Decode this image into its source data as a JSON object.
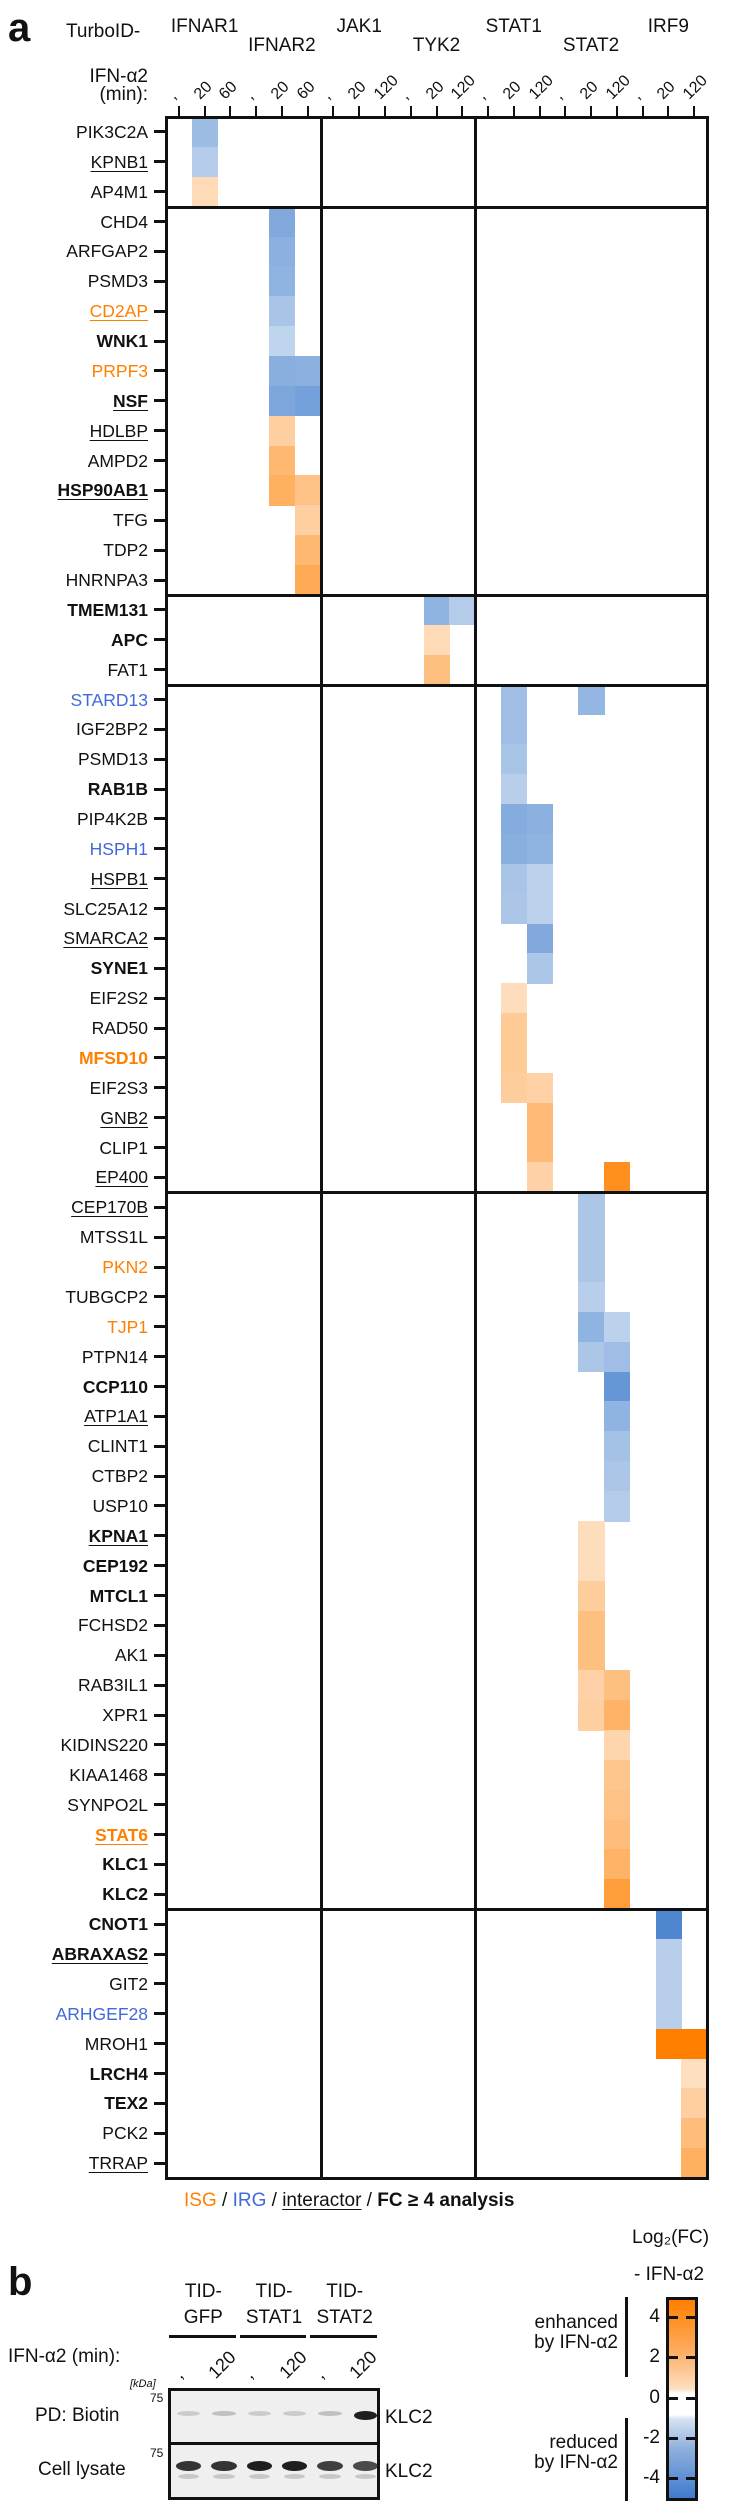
{
  "panel_a": {
    "letter": "a",
    "turboid_label": "TurboID-",
    "ifn_label_line1": "IFN-α2",
    "ifn_label_line2": "(min):",
    "baits": [
      "IFNAR1",
      "IFNAR2",
      "JAK1",
      "TYK2",
      "STAT1",
      "STAT2",
      "IRF9"
    ],
    "legend": {
      "isg": "ISG",
      "sep1": " / ",
      "irg": "IRG",
      "sep2": " / ",
      "interactor": "interactor",
      "sep3": " / ",
      "fc": "FC ≥ 4 analysis"
    }
  },
  "panel_b": {
    "letter": "b",
    "groups": [
      {
        "line1": "TID-",
        "line2": "GFP"
      },
      {
        "line1": "TID-",
        "line2": "STAT1"
      },
      {
        "line1": "TID-",
        "line2": "STAT2"
      }
    ],
    "ifn_label": "IFN-α2 (min):",
    "lanes": [
      "-",
      "120",
      "-",
      "120",
      "-",
      "120"
    ],
    "kda_label": "[kDa]",
    "marker_pd": "75",
    "marker_lysate": "75",
    "row_pd_label": "PD: Biotin",
    "row_lysate_label": "Cell lysate",
    "band_label_pd": "KLC2",
    "band_label_lysate": "KLC2",
    "pd_band_intensity": [
      0.15,
      0.2,
      0.15,
      0.15,
      0.2,
      0.95
    ],
    "lysate_band_intensity": [
      0.85,
      0.85,
      0.95,
      0.95,
      0.8,
      0.75
    ]
  },
  "colorbar": {
    "title": "Log₂(FC)",
    "subtitle": "- IFN-α2",
    "enhanced_line1": "enhanced",
    "enhanced_line2": "by IFN-α2",
    "reduced_line1": "reduced",
    "reduced_line2": "by IFN-α2",
    "ticks": [
      "4",
      "2",
      "0",
      "-2",
      "-4"
    ],
    "colors": {
      "max_orange": "#ff8000",
      "light_orange": "#fde5cc",
      "light_blue": "#d1e0f2",
      "max_blue": "#3f7bcc"
    }
  },
  "chart_data": {
    "type": "heatmap",
    "title": "TurboID proximity labeling: Log2(FC) vs untreated (- IFN-α2)",
    "xlabel": "TurboID- bait / IFN-α2 (min)",
    "ylabel": "",
    "colorbar_label": "Log2(FC) - IFN-α2",
    "value_range": [
      -5,
      5
    ],
    "columns": [
      {
        "bait": "IFNAR1",
        "time": "-"
      },
      {
        "bait": "IFNAR1",
        "time": "20"
      },
      {
        "bait": "IFNAR1",
        "time": "60"
      },
      {
        "bait": "IFNAR2",
        "time": "-"
      },
      {
        "bait": "IFNAR2",
        "time": "20"
      },
      {
        "bait": "IFNAR2",
        "time": "60"
      },
      {
        "bait": "JAK1",
        "time": "-"
      },
      {
        "bait": "JAK1",
        "time": "20"
      },
      {
        "bait": "JAK1",
        "time": "120"
      },
      {
        "bait": "TYK2",
        "time": "-"
      },
      {
        "bait": "TYK2",
        "time": "20"
      },
      {
        "bait": "TYK2",
        "time": "120"
      },
      {
        "bait": "STAT1",
        "time": "-"
      },
      {
        "bait": "STAT1",
        "time": "20"
      },
      {
        "bait": "STAT1",
        "time": "120"
      },
      {
        "bait": "STAT2",
        "time": "-"
      },
      {
        "bait": "STAT2",
        "time": "20"
      },
      {
        "bait": "STAT2",
        "time": "120"
      },
      {
        "bait": "IRF9",
        "time": "-"
      },
      {
        "bait": "IRF9",
        "time": "20"
      },
      {
        "bait": "IRF9",
        "time": "120"
      }
    ],
    "row_groups_end": [
      3,
      16,
      19,
      36,
      60,
      69
    ],
    "rows": [
      {
        "gene": "PIK3C2A",
        "style": []
      },
      {
        "gene": "KPNB1",
        "style": [
          "u"
        ]
      },
      {
        "gene": "AP4M1",
        "style": []
      },
      {
        "gene": "CHD4",
        "style": []
      },
      {
        "gene": "ARFGAP2",
        "style": []
      },
      {
        "gene": "PSMD3",
        "style": []
      },
      {
        "gene": "CD2AP",
        "style": [
          "isg",
          "u"
        ]
      },
      {
        "gene": "WNK1",
        "style": [
          "b"
        ]
      },
      {
        "gene": "PRPF3",
        "style": [
          "isg"
        ]
      },
      {
        "gene": "NSF",
        "style": [
          "b",
          "u"
        ]
      },
      {
        "gene": "HDLBP",
        "style": [
          "u"
        ]
      },
      {
        "gene": "AMPD2",
        "style": []
      },
      {
        "gene": "HSP90AB1",
        "style": [
          "b",
          "u"
        ]
      },
      {
        "gene": "TFG",
        "style": []
      },
      {
        "gene": "TDP2",
        "style": []
      },
      {
        "gene": "HNRNPA3",
        "style": []
      },
      {
        "gene": "TMEM131",
        "style": [
          "b"
        ]
      },
      {
        "gene": "APC",
        "style": [
          "b"
        ]
      },
      {
        "gene": "FAT1",
        "style": []
      },
      {
        "gene": "STARD13",
        "style": [
          "irg"
        ]
      },
      {
        "gene": "IGF2BP2",
        "style": []
      },
      {
        "gene": "PSMD13",
        "style": []
      },
      {
        "gene": "RAB1B",
        "style": [
          "b"
        ]
      },
      {
        "gene": "PIP4K2B",
        "style": []
      },
      {
        "gene": "HSPH1",
        "style": [
          "irg"
        ]
      },
      {
        "gene": "HSPB1",
        "style": [
          "u"
        ]
      },
      {
        "gene": "SLC25A12",
        "style": []
      },
      {
        "gene": "SMARCA2",
        "style": [
          "u"
        ]
      },
      {
        "gene": "SYNE1",
        "style": [
          "b"
        ]
      },
      {
        "gene": "EIF2S2",
        "style": []
      },
      {
        "gene": "RAD50",
        "style": []
      },
      {
        "gene": "MFSD10",
        "style": [
          "isg",
          "b"
        ]
      },
      {
        "gene": "EIF2S3",
        "style": []
      },
      {
        "gene": "GNB2",
        "style": [
          "u"
        ]
      },
      {
        "gene": "CLIP1",
        "style": []
      },
      {
        "gene": "EP400",
        "style": [
          "u"
        ]
      },
      {
        "gene": "CEP170B",
        "style": [
          "u"
        ]
      },
      {
        "gene": "MTSS1L",
        "style": []
      },
      {
        "gene": "PKN2",
        "style": [
          "isg"
        ]
      },
      {
        "gene": "TUBGCP2",
        "style": []
      },
      {
        "gene": "TJP1",
        "style": [
          "isg"
        ]
      },
      {
        "gene": "PTPN14",
        "style": []
      },
      {
        "gene": "CCP110",
        "style": [
          "b"
        ]
      },
      {
        "gene": "ATP1A1",
        "style": [
          "u"
        ]
      },
      {
        "gene": "CLINT1",
        "style": []
      },
      {
        "gene": "CTBP2",
        "style": []
      },
      {
        "gene": "USP10",
        "style": []
      },
      {
        "gene": "KPNA1",
        "style": [
          "b",
          "u"
        ]
      },
      {
        "gene": "CEP192",
        "style": [
          "b"
        ]
      },
      {
        "gene": "MTCL1",
        "style": [
          "b"
        ]
      },
      {
        "gene": "FCHSD2",
        "style": []
      },
      {
        "gene": "AK1",
        "style": []
      },
      {
        "gene": "RAB3IL1",
        "style": []
      },
      {
        "gene": "XPR1",
        "style": []
      },
      {
        "gene": "KIDINS220",
        "style": []
      },
      {
        "gene": "KIAA1468",
        "style": []
      },
      {
        "gene": "SYNPO2L",
        "style": []
      },
      {
        "gene": "STAT6",
        "style": [
          "isg",
          "b",
          "u"
        ]
      },
      {
        "gene": "KLC1",
        "style": [
          "b"
        ]
      },
      {
        "gene": "KLC2",
        "style": [
          "b"
        ]
      },
      {
        "gene": "CNOT1",
        "style": [
          "b"
        ]
      },
      {
        "gene": "ABRAXAS2",
        "style": [
          "b",
          "u"
        ]
      },
      {
        "gene": "GIT2",
        "style": []
      },
      {
        "gene": "ARHGEF28",
        "style": [
          "irg"
        ]
      },
      {
        "gene": "MROH1",
        "style": []
      },
      {
        "gene": "LRCH4",
        "style": [
          "b"
        ]
      },
      {
        "gene": "TEX2",
        "style": [
          "b"
        ]
      },
      {
        "gene": "PCK2",
        "style": []
      },
      {
        "gene": "TRRAP",
        "style": [
          "u"
        ]
      }
    ],
    "cells": [
      [
        0,
        1,
        -2.6
      ],
      [
        1,
        1,
        -2.0
      ],
      [
        2,
        1,
        1.6
      ],
      [
        3,
        4,
        -3.3
      ],
      [
        4,
        4,
        -3.0
      ],
      [
        5,
        4,
        -2.9
      ],
      [
        6,
        4,
        -2.3
      ],
      [
        7,
        4,
        -1.7
      ],
      [
        8,
        4,
        -3.1
      ],
      [
        8,
        5,
        -3.0
      ],
      [
        9,
        4,
        -3.4
      ],
      [
        9,
        5,
        -3.6
      ],
      [
        10,
        4,
        2.0
      ],
      [
        11,
        4,
        2.9
      ],
      [
        12,
        4,
        3.2
      ],
      [
        12,
        5,
        2.5
      ],
      [
        13,
        5,
        2.0
      ],
      [
        14,
        5,
        2.9
      ],
      [
        15,
        5,
        3.4
      ],
      [
        16,
        10,
        -2.9
      ],
      [
        16,
        11,
        -2.0
      ],
      [
        17,
        10,
        1.6
      ],
      [
        18,
        10,
        2.6
      ],
      [
        19,
        13,
        -2.5
      ],
      [
        19,
        16,
        -2.8
      ],
      [
        20,
        13,
        -2.5
      ],
      [
        21,
        13,
        -2.3
      ],
      [
        22,
        13,
        -1.9
      ],
      [
        23,
        13,
        -3.2
      ],
      [
        23,
        14,
        -3.0
      ],
      [
        24,
        13,
        -3.1
      ],
      [
        24,
        14,
        -2.9
      ],
      [
        25,
        13,
        -2.3
      ],
      [
        25,
        14,
        -1.8
      ],
      [
        26,
        13,
        -2.2
      ],
      [
        26,
        14,
        -1.8
      ],
      [
        27,
        14,
        -3.3
      ],
      [
        28,
        14,
        -2.2
      ],
      [
        29,
        13,
        1.5
      ],
      [
        30,
        13,
        2.2
      ],
      [
        31,
        13,
        2.2
      ],
      [
        32,
        13,
        2.1
      ],
      [
        32,
        14,
        1.9
      ],
      [
        33,
        14,
        2.8
      ],
      [
        34,
        14,
        2.8
      ],
      [
        35,
        14,
        1.9
      ],
      [
        35,
        17,
        4.4
      ],
      [
        36,
        16,
        -2.2
      ],
      [
        37,
        16,
        -2.2
      ],
      [
        38,
        16,
        -2.2
      ],
      [
        39,
        16,
        -1.9
      ],
      [
        40,
        16,
        -2.9
      ],
      [
        40,
        17,
        -1.8
      ],
      [
        41,
        16,
        -2.2
      ],
      [
        41,
        17,
        -2.5
      ],
      [
        42,
        17,
        -4.0
      ],
      [
        43,
        17,
        -2.9
      ],
      [
        44,
        17,
        -2.4
      ],
      [
        45,
        17,
        -2.2
      ],
      [
        46,
        17,
        -2.0
      ],
      [
        47,
        16,
        1.5
      ],
      [
        48,
        16,
        1.5
      ],
      [
        49,
        16,
        2.1
      ],
      [
        50,
        16,
        2.6
      ],
      [
        51,
        16,
        2.6
      ],
      [
        52,
        16,
        1.9
      ],
      [
        52,
        17,
        2.6
      ],
      [
        53,
        16,
        2.0
      ],
      [
        53,
        17,
        3.1
      ],
      [
        54,
        17,
        1.8
      ],
      [
        55,
        17,
        2.4
      ],
      [
        56,
        17,
        2.5
      ],
      [
        57,
        17,
        2.7
      ],
      [
        58,
        17,
        3.1
      ],
      [
        59,
        17,
        3.9
      ],
      [
        60,
        19,
        -4.6
      ],
      [
        61,
        19,
        -1.9
      ],
      [
        62,
        19,
        -1.9
      ],
      [
        63,
        19,
        -1.9
      ],
      [
        64,
        19,
        5.0
      ],
      [
        64,
        20,
        5.0
      ],
      [
        65,
        20,
        1.4
      ],
      [
        66,
        20,
        2.0
      ],
      [
        67,
        20,
        2.7
      ],
      [
        68,
        20,
        3.2
      ]
    ],
    "legend_position": "bottom-right colorbar"
  }
}
